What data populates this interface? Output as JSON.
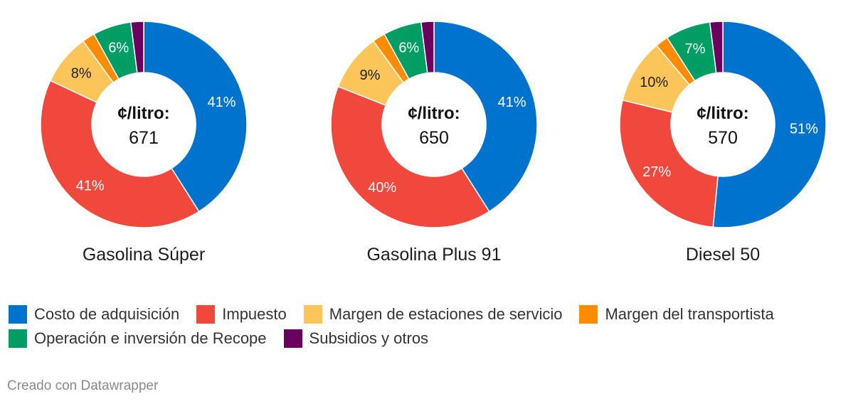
{
  "chart_data": [
    {
      "type": "pie",
      "title": "Gasolina Súper",
      "center_label": "¢/litro:",
      "center_value": "671",
      "categories": [
        "Costo de adquisición",
        "Impuesto",
        "Margen de estaciones de servicio",
        "Margen del transportista",
        "Operación e inversión de Recope",
        "Subsidios y otros"
      ],
      "values": [
        41,
        41,
        8,
        2,
        6,
        2
      ],
      "labels": [
        "41%",
        "41%",
        "8%",
        "",
        "6%",
        ""
      ]
    },
    {
      "type": "pie",
      "title": "Gasolina Plus 91",
      "center_label": "¢/litro:",
      "center_value": "650",
      "categories": [
        "Costo de adquisición",
        "Impuesto",
        "Margen de estaciones de servicio",
        "Margen del transportista",
        "Operación e inversión de Recope",
        "Subsidios y otros"
      ],
      "values": [
        41,
        40,
        9,
        2,
        6,
        2
      ],
      "labels": [
        "41%",
        "40%",
        "9%",
        "",
        "6%",
        ""
      ]
    },
    {
      "type": "pie",
      "title": "Diesel 50",
      "center_label": "¢/litro:",
      "center_value": "570",
      "categories": [
        "Costo de adquisición",
        "Impuesto",
        "Margen de estaciones de servicio",
        "Margen del transportista",
        "Operación e inversión de Recope",
        "Subsidios y otros"
      ],
      "values": [
        51,
        27,
        10,
        2,
        7,
        2
      ],
      "labels": [
        "51%",
        "27%",
        "10%",
        "",
        "7%",
        ""
      ]
    }
  ],
  "colors": [
    "#0073cf",
    "#f0483c",
    "#fcc55a",
    "#ff8c00",
    "#009d64",
    "#6b005f"
  ],
  "legend": {
    "items": [
      {
        "label": "Costo de adquisición",
        "color": "#0073cf"
      },
      {
        "label": "Impuesto",
        "color": "#f0483c"
      },
      {
        "label": "Margen de estaciones de servicio",
        "color": "#fcc55a"
      },
      {
        "label": "Margen del transportista",
        "color": "#ff8c00"
      },
      {
        "label": "Operación e inversión de Recope",
        "color": "#009d64"
      },
      {
        "label": "Subsidios y otros",
        "color": "#6b005f"
      }
    ]
  },
  "footer": {
    "credit": "Creado con Datawrapper"
  }
}
